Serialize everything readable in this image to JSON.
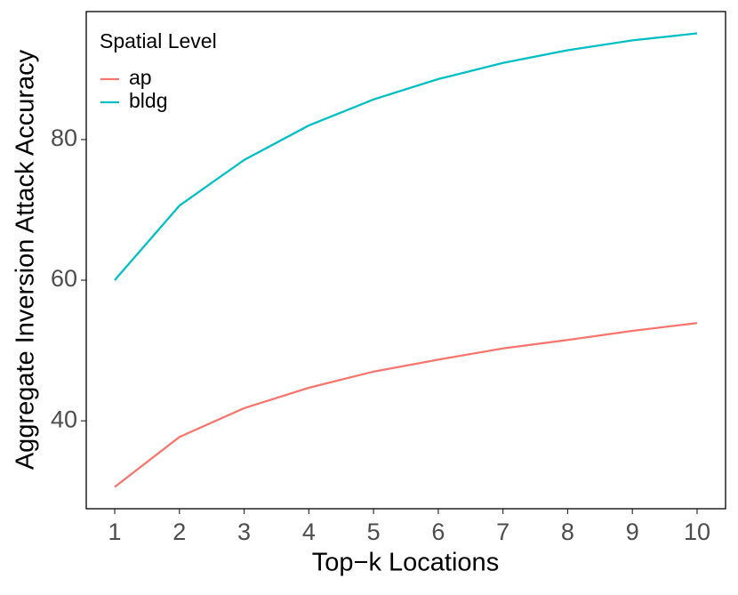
{
  "chart_data": {
    "type": "line",
    "xlabel": "Top−k Locations",
    "ylabel": "Aggregate Inversion Attack Accuracy",
    "x": [
      1,
      2,
      3,
      4,
      5,
      6,
      7,
      8,
      9,
      10
    ],
    "series": [
      {
        "name": "ap",
        "color": "#F8766D",
        "values": [
          30.6,
          37.7,
          41.8,
          44.7,
          47.0,
          48.7,
          50.3,
          51.5,
          52.8,
          53.9
        ]
      },
      {
        "name": "bldg",
        "color": "#00BFC4",
        "values": [
          60.0,
          70.6,
          77.1,
          82.0,
          85.7,
          88.6,
          90.9,
          92.7,
          94.1,
          95.1
        ]
      }
    ],
    "legend_title": "Spatial Level",
    "legend": "top-left",
    "xlim": [
      0.56,
      10.44
    ],
    "xticks": [
      1,
      2,
      3,
      4,
      5,
      6,
      7,
      8,
      9,
      10
    ],
    "ylim": [
      27.5,
      98.2
    ],
    "yticks": [
      40,
      60,
      80
    ]
  }
}
